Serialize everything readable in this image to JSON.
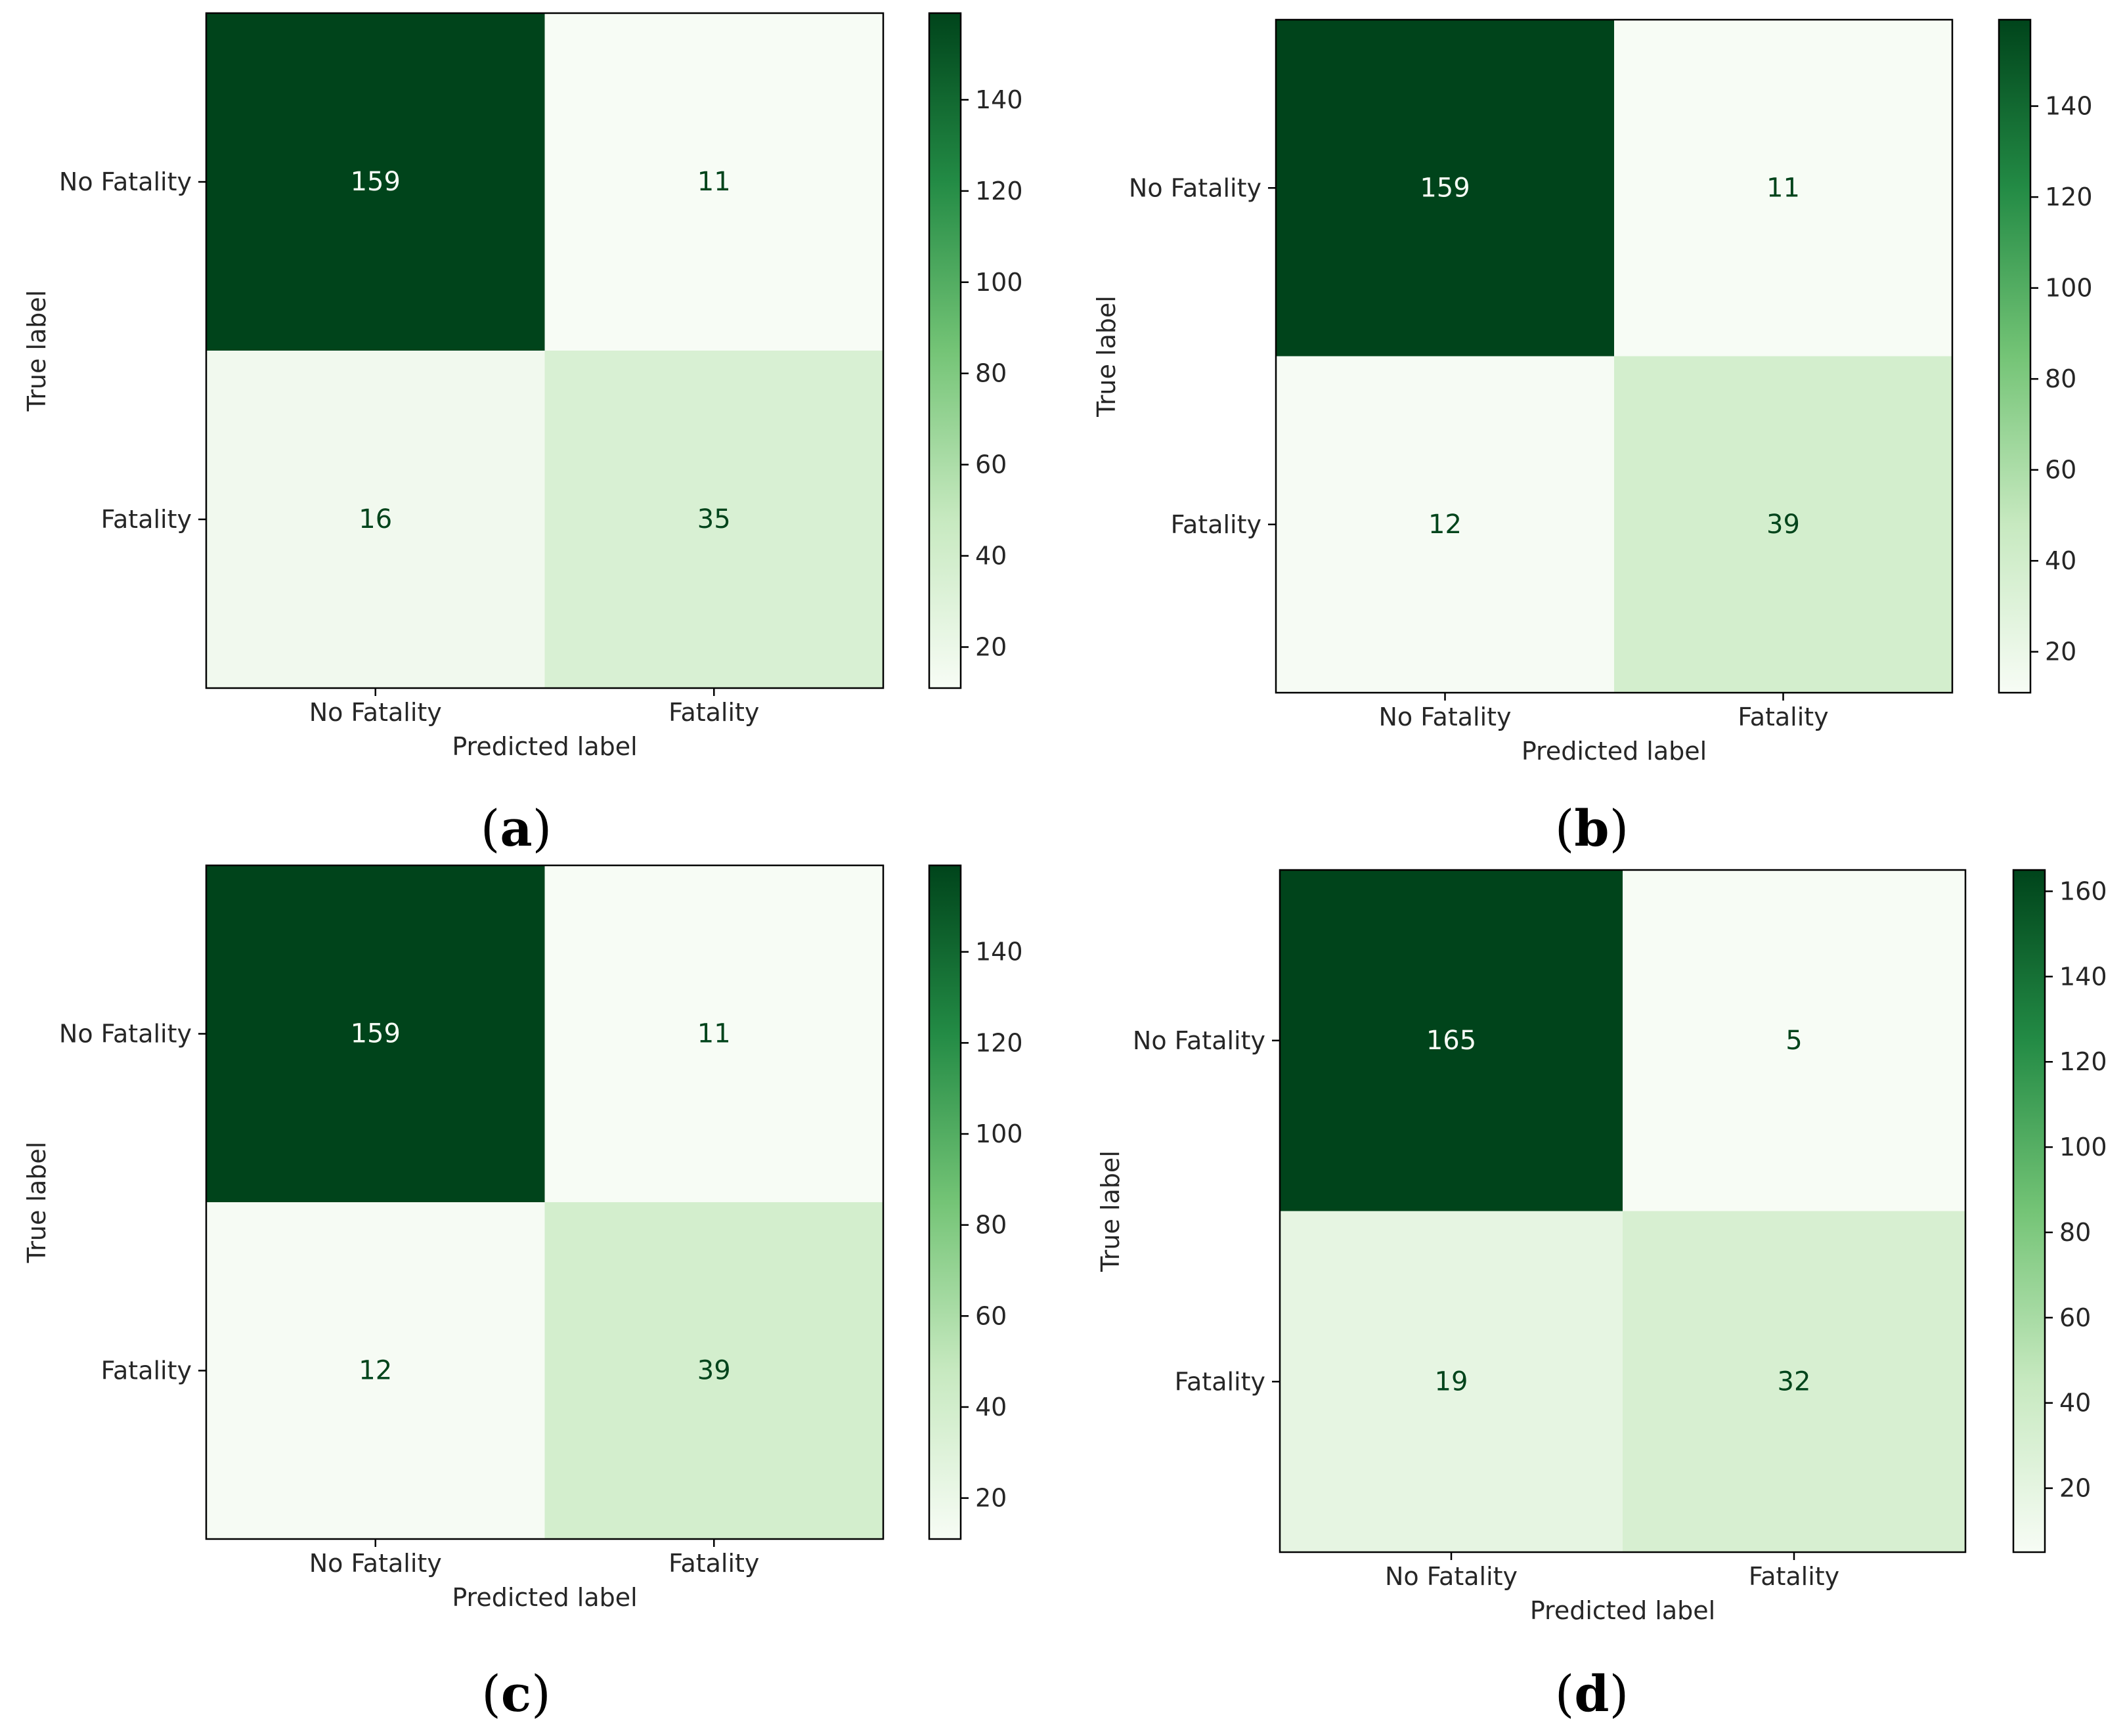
{
  "colors": {
    "cmap_low": "#f7fcf5",
    "cmap_mid1": "#c7e9c0",
    "cmap_mid2": "#74c476",
    "cmap_mid3": "#238b45",
    "cmap_high": "#00441b",
    "text_light": "#f7fcf5",
    "text_dark": "#00441b",
    "axis": "#000000",
    "text": "#262626"
  },
  "chart_data": [
    {
      "type": "heatmap",
      "panel_label": "a",
      "title": "",
      "xlabel": "Predicted label",
      "ylabel": "True label",
      "x_categories": [
        "No Fatality",
        "Fatality"
      ],
      "y_categories": [
        "No Fatality",
        "Fatality"
      ],
      "values": [
        [
          159,
          11
        ],
        [
          16,
          35
        ]
      ],
      "colorbar": {
        "range": [
          11,
          159
        ],
        "ticks": [
          20,
          40,
          60,
          80,
          100,
          120,
          140
        ]
      }
    },
    {
      "type": "heatmap",
      "panel_label": "b",
      "title": "",
      "xlabel": "Predicted label",
      "ylabel": "True label",
      "x_categories": [
        "No Fatality",
        "Fatality"
      ],
      "y_categories": [
        "No Fatality",
        "Fatality"
      ],
      "values": [
        [
          159,
          11
        ],
        [
          12,
          39
        ]
      ],
      "colorbar": {
        "range": [
          11,
          159
        ],
        "ticks": [
          20,
          40,
          60,
          80,
          100,
          120,
          140
        ]
      }
    },
    {
      "type": "heatmap",
      "panel_label": "c",
      "title": "",
      "xlabel": "Predicted label",
      "ylabel": "True label",
      "x_categories": [
        "No Fatality",
        "Fatality"
      ],
      "y_categories": [
        "No Fatality",
        "Fatality"
      ],
      "values": [
        [
          159,
          11
        ],
        [
          12,
          39
        ]
      ],
      "colorbar": {
        "range": [
          11,
          159
        ],
        "ticks": [
          20,
          40,
          60,
          80,
          100,
          120,
          140
        ]
      }
    },
    {
      "type": "heatmap",
      "panel_label": "d",
      "title": "",
      "xlabel": "Predicted label",
      "ylabel": "True label",
      "x_categories": [
        "No Fatality",
        "Fatality"
      ],
      "y_categories": [
        "No Fatality",
        "Fatality"
      ],
      "values": [
        [
          165,
          5
        ],
        [
          19,
          32
        ]
      ],
      "colorbar": {
        "range": [
          5,
          165
        ],
        "ticks": [
          20,
          40,
          60,
          80,
          100,
          120,
          140,
          160
        ]
      }
    }
  ]
}
